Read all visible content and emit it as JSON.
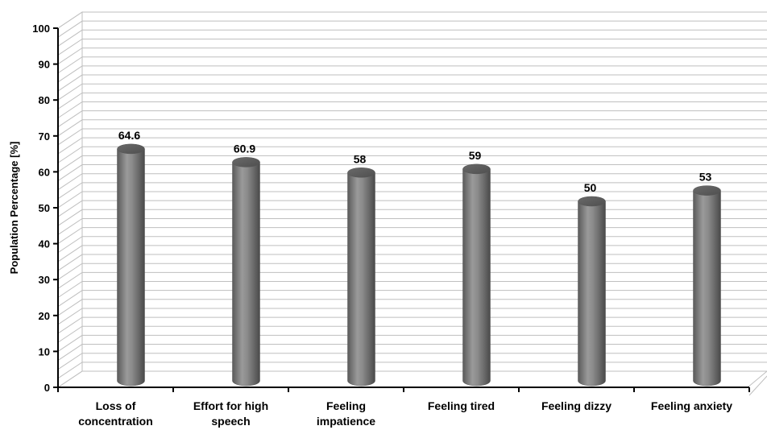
{
  "chart_data": {
    "type": "bar",
    "style": "3d-cylinder",
    "categories": [
      "Loss of\nconcentration",
      "Effort for high\nspeech",
      "Feeling\nimpatience",
      "Feeling tired",
      "Feeling dizzy",
      "Feeling anxiety"
    ],
    "values": [
      64.6,
      60.9,
      58,
      59,
      50,
      53
    ],
    "data_labels": [
      "64.6",
      "60.9",
      "58",
      "59",
      "50",
      "53"
    ],
    "title": "",
    "xlabel": "",
    "ylabel": "Population Percentage [%]",
    "ylim": [
      0,
      100
    ],
    "yticks": [
      0,
      10,
      20,
      30,
      40,
      50,
      60,
      70,
      80,
      90,
      100
    ],
    "grid": true,
    "bar_color": "#7f7f7f",
    "gridline_color": "#bfbfbf"
  }
}
